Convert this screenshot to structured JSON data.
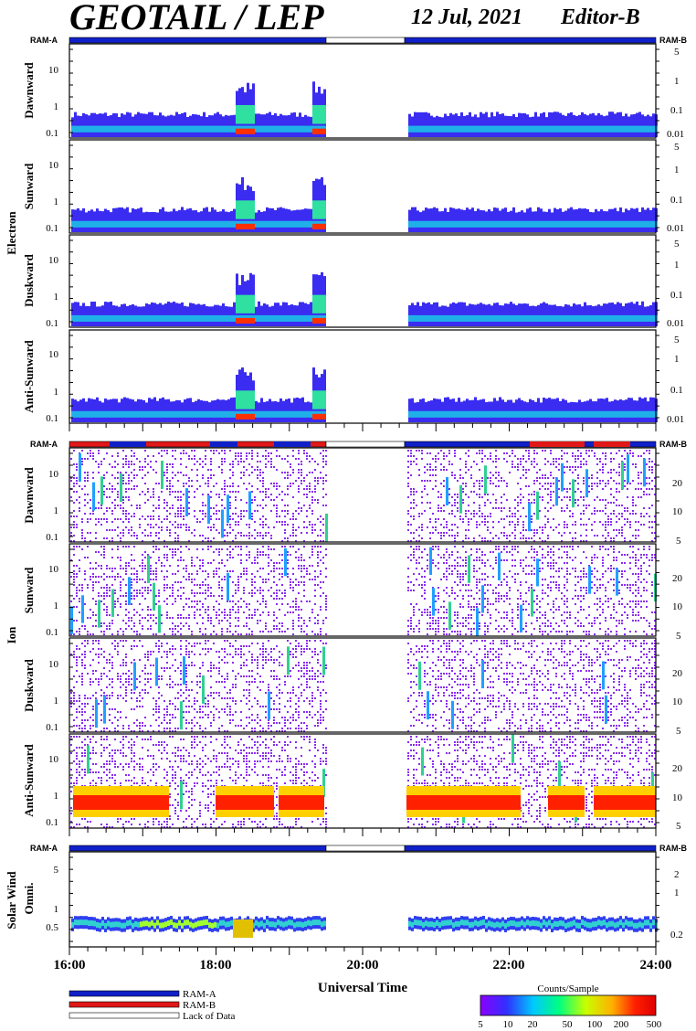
{
  "header": {
    "title": "GEOTAIL / LEP",
    "date": "12 Jul, 2021",
    "editor": "Editor-B"
  },
  "sections": [
    {
      "label": "Electron",
      "panels": [
        "Dawnward",
        "Sunward",
        "Duskward",
        "Anti-Sunward"
      ]
    },
    {
      "label": "Ion",
      "panels": [
        "Dawnward",
        "Sunward",
        "Duskward",
        "Anti-Sunward"
      ]
    },
    {
      "label": "Solar Wind",
      "panels": [
        "Omni."
      ]
    }
  ],
  "ram": {
    "left": "RAM-A",
    "right": "RAM-B"
  },
  "colors": {
    "ram_a": "#1020c8",
    "ram_b": "#e01818",
    "lack": "#ffffff"
  },
  "chart_data": {
    "type": "heatmap",
    "xlabel": "Universal Time",
    "x_ticks": [
      "16:00",
      "18:00",
      "20:00",
      "22:00",
      "24:00"
    ],
    "x_range_hours": [
      16,
      24
    ],
    "data_gap_hours": [
      19.5,
      20.6
    ],
    "electron_left_ticks": [
      "10",
      "1",
      "0.1"
    ],
    "electron_right_ticks": [
      "5",
      "1",
      "0.1",
      "0.01"
    ],
    "ion_left_ticks": [
      "10",
      "1",
      "0.1"
    ],
    "ion_right_ticks": [
      "20",
      "10",
      "5"
    ],
    "sw_left_ticks": [
      "5",
      "1",
      "0.5"
    ],
    "sw_right_ticks": [
      "2",
      "1",
      "0.2"
    ],
    "colorbar": {
      "label": "Counts/Sample",
      "ticks": [
        "5",
        "10",
        "20",
        "50",
        "100",
        "200",
        "500"
      ],
      "colors": [
        "#8a00ff",
        "#3030ff",
        "#00c8ff",
        "#00ff80",
        "#c8ff00",
        "#ffb000",
        "#ff2000",
        "#e00000"
      ]
    }
  },
  "legend": {
    "items": [
      {
        "label": "RAM-A",
        "color": "#1020c8"
      },
      {
        "label": "RAM-B",
        "color": "#e01818"
      },
      {
        "label": "Lack of Data",
        "color": "#ffffff"
      }
    ]
  }
}
